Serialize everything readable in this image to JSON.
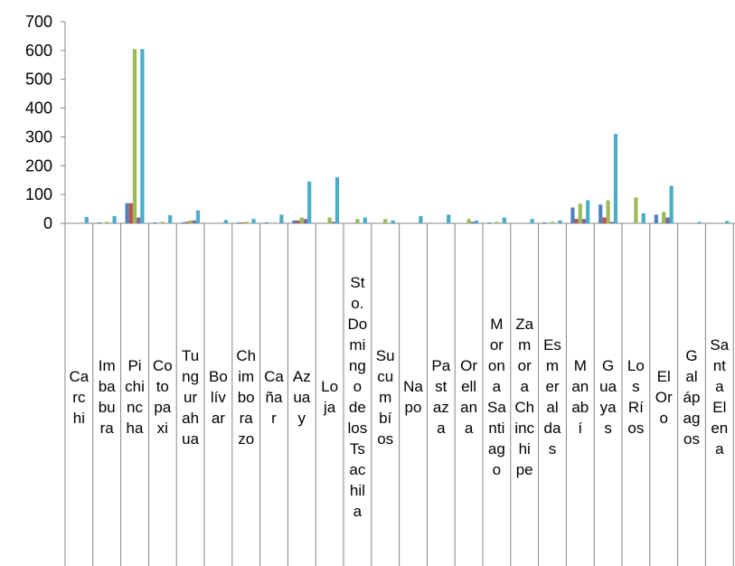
{
  "chart_data": {
    "type": "bar",
    "ylim": [
      0,
      700
    ],
    "yticks": [
      "700",
      "600",
      "500",
      "400",
      "300",
      "200",
      "100",
      "0"
    ],
    "categories": [
      "Carchi",
      "Imbabura",
      "Pichincha",
      "Cotopaxi",
      "Tungurahua",
      "Bolívar",
      "Chimborazo",
      "Cañar",
      "Azuay",
      "Loja",
      "Sto. Domingo de los Tsachila",
      "Sucumbíos",
      "Napo",
      "Pastaza",
      "Orellana",
      "Morona Santiago",
      "Zamora Chinchipe",
      "Esmeraldas",
      "Manabí",
      "Guayas",
      "Los Ríos",
      "El Oro",
      "Galápagos",
      "Santa Elena"
    ],
    "colors": [
      "#4f81bd",
      "#c0504d",
      "#9bbb59",
      "#8064a2",
      "#4bacc6"
    ],
    "series": [
      {
        "values": [
          0,
          3,
          70,
          3,
          3,
          0,
          3,
          3,
          10,
          0,
          0,
          0,
          0,
          0,
          0,
          3,
          0,
          3,
          55,
          65,
          0,
          30,
          0,
          0
        ]
      },
      {
        "values": [
          0,
          0,
          70,
          0,
          5,
          0,
          3,
          0,
          10,
          0,
          0,
          0,
          0,
          0,
          0,
          0,
          0,
          0,
          15,
          20,
          0,
          0,
          0,
          0
        ]
      },
      {
        "values": [
          0,
          5,
          605,
          5,
          10,
          0,
          5,
          0,
          20,
          20,
          15,
          15,
          0,
          0,
          15,
          5,
          0,
          5,
          68,
          80,
          90,
          40,
          0,
          0
        ]
      },
      {
        "values": [
          0,
          0,
          20,
          0,
          10,
          0,
          0,
          0,
          15,
          5,
          0,
          0,
          0,
          0,
          5,
          0,
          0,
          0,
          15,
          5,
          0,
          20,
          0,
          0
        ]
      },
      {
        "values": [
          22,
          25,
          605,
          28,
          45,
          12,
          15,
          30,
          145,
          160,
          20,
          10,
          25,
          30,
          10,
          20,
          15,
          10,
          80,
          310,
          35,
          130,
          5,
          8
        ]
      }
    ]
  }
}
